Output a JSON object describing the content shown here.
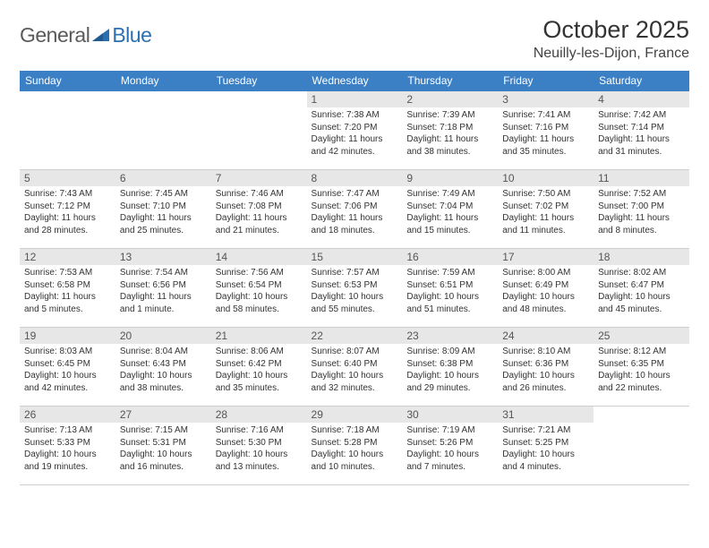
{
  "logo": {
    "text_gray": "General",
    "text_blue": "Blue"
  },
  "header": {
    "month_title": "October 2025",
    "location": "Neuilly-les-Dijon, France"
  },
  "colors": {
    "header_bg": "#3b7fc4",
    "header_text": "#ffffff",
    "row_border": "#3b7fc4",
    "daybar_bg": "#e7e7e7",
    "logo_gray": "#5a5a5a",
    "logo_blue": "#2b6fb0"
  },
  "dayHeaders": [
    "Sunday",
    "Monday",
    "Tuesday",
    "Wednesday",
    "Thursday",
    "Friday",
    "Saturday"
  ],
  "weeks": [
    [
      null,
      null,
      null,
      {
        "day": "1",
        "sunrise": "Sunrise: 7:38 AM",
        "sunset": "Sunset: 7:20 PM",
        "daylight": "Daylight: 11 hours and 42 minutes."
      },
      {
        "day": "2",
        "sunrise": "Sunrise: 7:39 AM",
        "sunset": "Sunset: 7:18 PM",
        "daylight": "Daylight: 11 hours and 38 minutes."
      },
      {
        "day": "3",
        "sunrise": "Sunrise: 7:41 AM",
        "sunset": "Sunset: 7:16 PM",
        "daylight": "Daylight: 11 hours and 35 minutes."
      },
      {
        "day": "4",
        "sunrise": "Sunrise: 7:42 AM",
        "sunset": "Sunset: 7:14 PM",
        "daylight": "Daylight: 11 hours and 31 minutes."
      }
    ],
    [
      {
        "day": "5",
        "sunrise": "Sunrise: 7:43 AM",
        "sunset": "Sunset: 7:12 PM",
        "daylight": "Daylight: 11 hours and 28 minutes."
      },
      {
        "day": "6",
        "sunrise": "Sunrise: 7:45 AM",
        "sunset": "Sunset: 7:10 PM",
        "daylight": "Daylight: 11 hours and 25 minutes."
      },
      {
        "day": "7",
        "sunrise": "Sunrise: 7:46 AM",
        "sunset": "Sunset: 7:08 PM",
        "daylight": "Daylight: 11 hours and 21 minutes."
      },
      {
        "day": "8",
        "sunrise": "Sunrise: 7:47 AM",
        "sunset": "Sunset: 7:06 PM",
        "daylight": "Daylight: 11 hours and 18 minutes."
      },
      {
        "day": "9",
        "sunrise": "Sunrise: 7:49 AM",
        "sunset": "Sunset: 7:04 PM",
        "daylight": "Daylight: 11 hours and 15 minutes."
      },
      {
        "day": "10",
        "sunrise": "Sunrise: 7:50 AM",
        "sunset": "Sunset: 7:02 PM",
        "daylight": "Daylight: 11 hours and 11 minutes."
      },
      {
        "day": "11",
        "sunrise": "Sunrise: 7:52 AM",
        "sunset": "Sunset: 7:00 PM",
        "daylight": "Daylight: 11 hours and 8 minutes."
      }
    ],
    [
      {
        "day": "12",
        "sunrise": "Sunrise: 7:53 AM",
        "sunset": "Sunset: 6:58 PM",
        "daylight": "Daylight: 11 hours and 5 minutes."
      },
      {
        "day": "13",
        "sunrise": "Sunrise: 7:54 AM",
        "sunset": "Sunset: 6:56 PM",
        "daylight": "Daylight: 11 hours and 1 minute."
      },
      {
        "day": "14",
        "sunrise": "Sunrise: 7:56 AM",
        "sunset": "Sunset: 6:54 PM",
        "daylight": "Daylight: 10 hours and 58 minutes."
      },
      {
        "day": "15",
        "sunrise": "Sunrise: 7:57 AM",
        "sunset": "Sunset: 6:53 PM",
        "daylight": "Daylight: 10 hours and 55 minutes."
      },
      {
        "day": "16",
        "sunrise": "Sunrise: 7:59 AM",
        "sunset": "Sunset: 6:51 PM",
        "daylight": "Daylight: 10 hours and 51 minutes."
      },
      {
        "day": "17",
        "sunrise": "Sunrise: 8:00 AM",
        "sunset": "Sunset: 6:49 PM",
        "daylight": "Daylight: 10 hours and 48 minutes."
      },
      {
        "day": "18",
        "sunrise": "Sunrise: 8:02 AM",
        "sunset": "Sunset: 6:47 PM",
        "daylight": "Daylight: 10 hours and 45 minutes."
      }
    ],
    [
      {
        "day": "19",
        "sunrise": "Sunrise: 8:03 AM",
        "sunset": "Sunset: 6:45 PM",
        "daylight": "Daylight: 10 hours and 42 minutes."
      },
      {
        "day": "20",
        "sunrise": "Sunrise: 8:04 AM",
        "sunset": "Sunset: 6:43 PM",
        "daylight": "Daylight: 10 hours and 38 minutes."
      },
      {
        "day": "21",
        "sunrise": "Sunrise: 8:06 AM",
        "sunset": "Sunset: 6:42 PM",
        "daylight": "Daylight: 10 hours and 35 minutes."
      },
      {
        "day": "22",
        "sunrise": "Sunrise: 8:07 AM",
        "sunset": "Sunset: 6:40 PM",
        "daylight": "Daylight: 10 hours and 32 minutes."
      },
      {
        "day": "23",
        "sunrise": "Sunrise: 8:09 AM",
        "sunset": "Sunset: 6:38 PM",
        "daylight": "Daylight: 10 hours and 29 minutes."
      },
      {
        "day": "24",
        "sunrise": "Sunrise: 8:10 AM",
        "sunset": "Sunset: 6:36 PM",
        "daylight": "Daylight: 10 hours and 26 minutes."
      },
      {
        "day": "25",
        "sunrise": "Sunrise: 8:12 AM",
        "sunset": "Sunset: 6:35 PM",
        "daylight": "Daylight: 10 hours and 22 minutes."
      }
    ],
    [
      {
        "day": "26",
        "sunrise": "Sunrise: 7:13 AM",
        "sunset": "Sunset: 5:33 PM",
        "daylight": "Daylight: 10 hours and 19 minutes."
      },
      {
        "day": "27",
        "sunrise": "Sunrise: 7:15 AM",
        "sunset": "Sunset: 5:31 PM",
        "daylight": "Daylight: 10 hours and 16 minutes."
      },
      {
        "day": "28",
        "sunrise": "Sunrise: 7:16 AM",
        "sunset": "Sunset: 5:30 PM",
        "daylight": "Daylight: 10 hours and 13 minutes."
      },
      {
        "day": "29",
        "sunrise": "Sunrise: 7:18 AM",
        "sunset": "Sunset: 5:28 PM",
        "daylight": "Daylight: 10 hours and 10 minutes."
      },
      {
        "day": "30",
        "sunrise": "Sunrise: 7:19 AM",
        "sunset": "Sunset: 5:26 PM",
        "daylight": "Daylight: 10 hours and 7 minutes."
      },
      {
        "day": "31",
        "sunrise": "Sunrise: 7:21 AM",
        "sunset": "Sunset: 5:25 PM",
        "daylight": "Daylight: 10 hours and 4 minutes."
      },
      null
    ]
  ]
}
